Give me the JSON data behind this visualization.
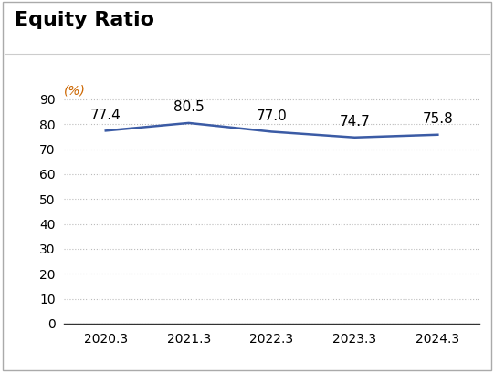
{
  "title": "Equity Ratio",
  "ylabel": "(%)",
  "x_labels": [
    "2020.3",
    "2021.3",
    "2022.3",
    "2023.3",
    "2024.3"
  ],
  "y_values": [
    77.4,
    80.5,
    77.0,
    74.7,
    75.8
  ],
  "line_color": "#3B5BA5",
  "line_width": 1.8,
  "ylim": [
    0,
    100
  ],
  "yticks": [
    0,
    10,
    20,
    30,
    40,
    50,
    60,
    70,
    80,
    90
  ],
  "grid_color": "#bbbbbb",
  "background_color": "#ffffff",
  "title_fontsize": 16,
  "ylabel_fontsize": 10,
  "tick_fontsize": 10,
  "annotation_fontsize": 11,
  "border_color": "#aaaaaa"
}
